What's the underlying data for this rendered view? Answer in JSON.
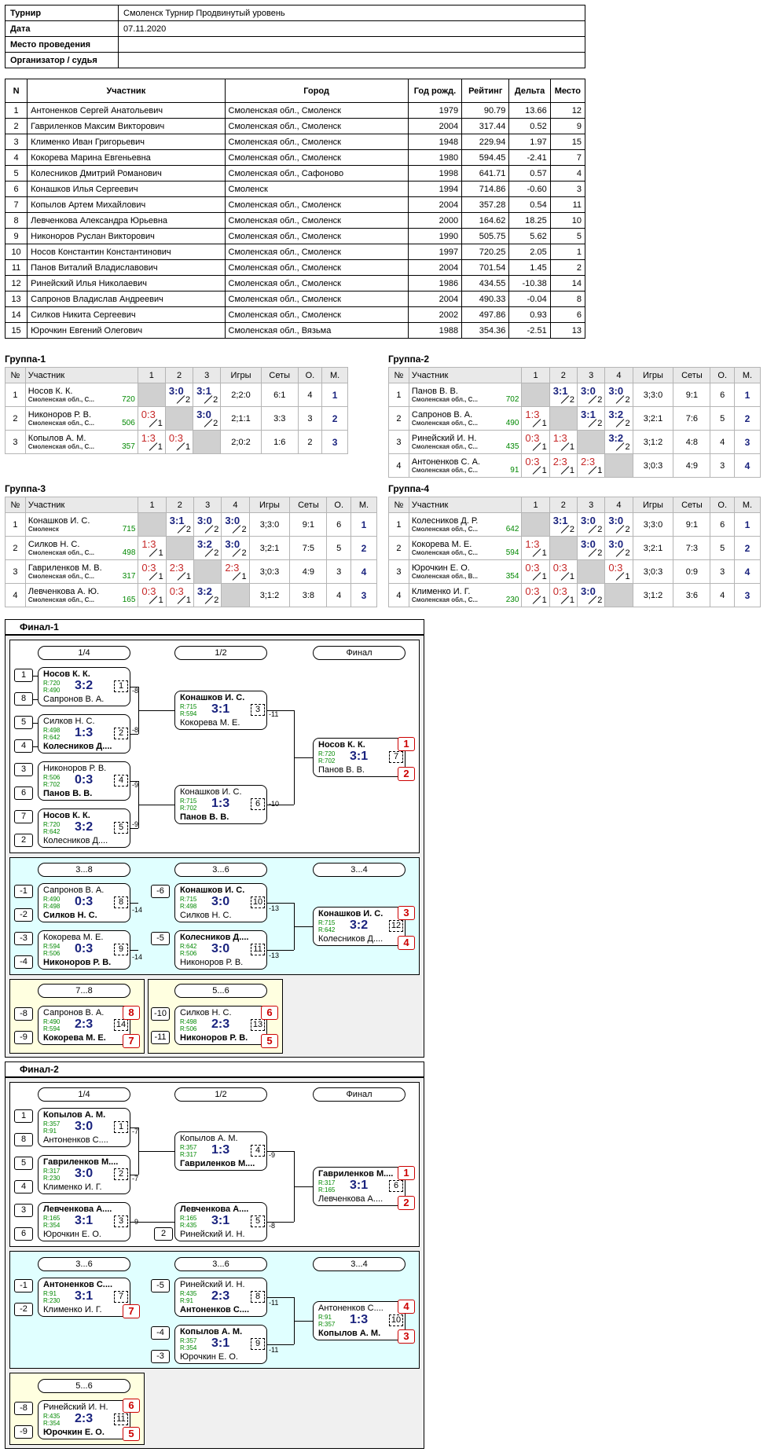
{
  "info": [
    {
      "k": "Турнир",
      "v": "Смоленск Турнир Продвинутый уровень"
    },
    {
      "k": "Дата",
      "v": "07.11.2020"
    },
    {
      "k": "Место проведения",
      "v": ""
    },
    {
      "k": "Организатор / судья",
      "v": ""
    }
  ],
  "participants": {
    "headers": [
      "N",
      "Участник",
      "Город",
      "Год рожд.",
      "Рейтинг",
      "Дельта",
      "Место"
    ],
    "rows": [
      [
        "1",
        "Антоненков Сергей Анатольевич",
        "Смоленская обл., Смоленск",
        "1979",
        "90.79",
        "13.66",
        "12"
      ],
      [
        "2",
        "Гавриленков Максим Викторович",
        "Смоленская обл., Смоленск",
        "2004",
        "317.44",
        "0.52",
        "9"
      ],
      [
        "3",
        "Клименко Иван Григорьевич",
        "Смоленская обл., Смоленск",
        "1948",
        "229.94",
        "1.97",
        "15"
      ],
      [
        "4",
        "Кокорева Марина Евгеньевна",
        "Смоленская обл., Смоленск",
        "1980",
        "594.45",
        "-2.41",
        "7"
      ],
      [
        "5",
        "Колесников Дмитрий Романович",
        "Смоленская обл., Сафоново",
        "1998",
        "641.71",
        "0.57",
        "4"
      ],
      [
        "6",
        "Конашков Илья Сергеевич",
        "Смоленск",
        "1994",
        "714.86",
        "-0.60",
        "3"
      ],
      [
        "7",
        "Копылов Артем Михайлович",
        "Смоленская обл., Смоленск",
        "2004",
        "357.28",
        "0.54",
        "11"
      ],
      [
        "8",
        "Левченкова Александра Юрьевна",
        "Смоленская обл., Смоленск",
        "2000",
        "164.62",
        "18.25",
        "10"
      ],
      [
        "9",
        "Никоноров Руслан Викторович",
        "Смоленская обл., Смоленск",
        "1990",
        "505.75",
        "5.62",
        "5"
      ],
      [
        "10",
        "Носов Константин Константинович",
        "Смоленская обл., Смоленск",
        "1997",
        "720.25",
        "2.05",
        "1"
      ],
      [
        "11",
        "Панов Виталий Владиславович",
        "Смоленская обл., Смоленск",
        "2004",
        "701.54",
        "1.45",
        "2"
      ],
      [
        "12",
        "Ринейский Илья Николаевич",
        "Смоленская обл., Смоленск",
        "1986",
        "434.55",
        "-10.38",
        "14"
      ],
      [
        "13",
        "Сапронов Владислав Андреевич",
        "Смоленская обл., Смоленск",
        "2004",
        "490.33",
        "-0.04",
        "8"
      ],
      [
        "14",
        "Силков Никита Сергеевич",
        "Смоленская обл., Смоленск",
        "2002",
        "497.86",
        "0.93",
        "6"
      ],
      [
        "15",
        "Юрочкин Евгений Олегович",
        "Смоленская обл., Вязьма",
        "1988",
        "354.36",
        "-2.51",
        "13"
      ]
    ]
  },
  "group_headers": {
    "n": "№",
    "name": "Участник",
    "games": "Игры",
    "sets": "Сеты",
    "pts": "О.",
    "place": "М."
  },
  "groups": [
    {
      "title": "Группа-1",
      "size": 3,
      "rows": [
        {
          "n": "1",
          "name": "Носов К. К.",
          "city": "Смоленская обл., С...",
          "rating": "720",
          "cells": [
            null,
            {
              "s": "3:0",
              "p": "2",
              "w": true
            },
            {
              "s": "3:1",
              "p": "2",
              "w": true
            }
          ],
          "games": "2;2:0",
          "sets": "6:1",
          "pts": "4",
          "place": "1"
        },
        {
          "n": "2",
          "name": "Никоноров Р. В.",
          "city": "Смоленская обл., С...",
          "rating": "506",
          "cells": [
            {
              "s": "0:3",
              "p": "1",
              "w": false
            },
            null,
            {
              "s": "3:0",
              "p": "2",
              "w": true
            }
          ],
          "games": "2;1:1",
          "sets": "3:3",
          "pts": "3",
          "place": "2"
        },
        {
          "n": "3",
          "name": "Копылов А. М.",
          "city": "Смоленская обл., С...",
          "rating": "357",
          "cells": [
            {
              "s": "1:3",
              "p": "1",
              "w": false
            },
            {
              "s": "0:3",
              "p": "1",
              "w": false
            },
            null
          ],
          "games": "2;0:2",
          "sets": "1:6",
          "pts": "2",
          "place": "3"
        }
      ]
    },
    {
      "title": "Группа-2",
      "size": 4,
      "rows": [
        {
          "n": "1",
          "name": "Панов В. В.",
          "city": "Смоленская обл., С...",
          "rating": "702",
          "cells": [
            null,
            {
              "s": "3:1",
              "p": "2",
              "w": true
            },
            {
              "s": "3:0",
              "p": "2",
              "w": true
            },
            {
              "s": "3:0",
              "p": "2",
              "w": true
            }
          ],
          "games": "3;3:0",
          "sets": "9:1",
          "pts": "6",
          "place": "1"
        },
        {
          "n": "2",
          "name": "Сапронов В. А.",
          "city": "Смоленская обл., С...",
          "rating": "490",
          "cells": [
            {
              "s": "1:3",
              "p": "1",
              "w": false
            },
            null,
            {
              "s": "3:1",
              "p": "2",
              "w": true
            },
            {
              "s": "3:2",
              "p": "2",
              "w": true
            }
          ],
          "games": "3;2:1",
          "sets": "7:6",
          "pts": "5",
          "place": "2"
        },
        {
          "n": "3",
          "name": "Ринейский И. Н.",
          "city": "Смоленская обл., С...",
          "rating": "435",
          "cells": [
            {
              "s": "0:3",
              "p": "1",
              "w": false
            },
            {
              "s": "1:3",
              "p": "1",
              "w": false
            },
            null,
            {
              "s": "3:2",
              "p": "2",
              "w": true
            }
          ],
          "games": "3;1:2",
          "sets": "4:8",
          "pts": "4",
          "place": "3"
        },
        {
          "n": "4",
          "name": "Антоненков С. А.",
          "city": "Смоленская обл., С...",
          "rating": "91",
          "cells": [
            {
              "s": "0:3",
              "p": "1",
              "w": false
            },
            {
              "s": "2:3",
              "p": "1",
              "w": false
            },
            {
              "s": "2:3",
              "p": "1",
              "w": false
            },
            null
          ],
          "games": "3;0:3",
          "sets": "4:9",
          "pts": "3",
          "place": "4"
        }
      ]
    },
    {
      "title": "Группа-3",
      "size": 4,
      "rows": [
        {
          "n": "1",
          "name": "Конашков И. С.",
          "city": "Смоленск",
          "rating": "715",
          "cells": [
            null,
            {
              "s": "3:1",
              "p": "2",
              "w": true
            },
            {
              "s": "3:0",
              "p": "2",
              "w": true
            },
            {
              "s": "3:0",
              "p": "2",
              "w": true
            }
          ],
          "games": "3;3:0",
          "sets": "9:1",
          "pts": "6",
          "place": "1"
        },
        {
          "n": "2",
          "name": "Силков Н. С.",
          "city": "Смоленская обл., С...",
          "rating": "498",
          "cells": [
            {
              "s": "1:3",
              "p": "1",
              "w": false
            },
            null,
            {
              "s": "3:2",
              "p": "2",
              "w": true
            },
            {
              "s": "3:0",
              "p": "2",
              "w": true
            }
          ],
          "games": "3;2:1",
          "sets": "7:5",
          "pts": "5",
          "place": "2"
        },
        {
          "n": "3",
          "name": "Гавриленков М. В.",
          "city": "Смоленская обл., С...",
          "rating": "317",
          "cells": [
            {
              "s": "0:3",
              "p": "1",
              "w": false
            },
            {
              "s": "2:3",
              "p": "1",
              "w": false
            },
            null,
            {
              "s": "2:3",
              "p": "1",
              "w": false
            }
          ],
          "games": "3;0:3",
          "sets": "4:9",
          "pts": "3",
          "place": "4"
        },
        {
          "n": "4",
          "name": "Левченкова А. Ю.",
          "city": "Смоленская обл., С...",
          "rating": "165",
          "cells": [
            {
              "s": "0:3",
              "p": "1",
              "w": false
            },
            {
              "s": "0:3",
              "p": "1",
              "w": false
            },
            {
              "s": "3:2",
              "p": "2",
              "w": true
            },
            null
          ],
          "games": "3;1:2",
          "sets": "3:8",
          "pts": "4",
          "place": "3"
        }
      ]
    },
    {
      "title": "Группа-4",
      "size": 4,
      "rows": [
        {
          "n": "1",
          "name": "Колесников Д. Р.",
          "city": "Смоленская обл., С...",
          "rating": "642",
          "cells": [
            null,
            {
              "s": "3:1",
              "p": "2",
              "w": true
            },
            {
              "s": "3:0",
              "p": "2",
              "w": true
            },
            {
              "s": "3:0",
              "p": "2",
              "w": true
            }
          ],
          "games": "3;3:0",
          "sets": "9:1",
          "pts": "6",
          "place": "1"
        },
        {
          "n": "2",
          "name": "Кокорева М. Е.",
          "city": "Смоленская обл., С...",
          "rating": "594",
          "cells": [
            {
              "s": "1:3",
              "p": "1",
              "w": false
            },
            null,
            {
              "s": "3:0",
              "p": "2",
              "w": true
            },
            {
              "s": "3:0",
              "p": "2",
              "w": true
            }
          ],
          "games": "3;2:1",
          "sets": "7:3",
          "pts": "5",
          "place": "2"
        },
        {
          "n": "3",
          "name": "Юрочкин Е. О.",
          "city": "Смоленская обл., В...",
          "rating": "354",
          "cells": [
            {
              "s": "0:3",
              "p": "1",
              "w": false
            },
            {
              "s": "0:3",
              "p": "1",
              "w": false
            },
            null,
            {
              "s": "0:3",
              "p": "1",
              "w": false
            }
          ],
          "games": "3;0:3",
          "sets": "0:9",
          "pts": "3",
          "place": "4"
        },
        {
          "n": "4",
          "name": "Клименко И. Г.",
          "city": "Смоленская обл., С...",
          "rating": "230",
          "cells": [
            {
              "s": "0:3",
              "p": "1",
              "w": false
            },
            {
              "s": "0:3",
              "p": "1",
              "w": false
            },
            {
              "s": "3:0",
              "p": "2",
              "w": true
            },
            null
          ],
          "games": "3;1:2",
          "sets": "3:6",
          "pts": "4",
          "place": "3"
        }
      ]
    }
  ],
  "final1": {
    "title": "Финал-1",
    "rounds": [
      "1/4",
      "1/2",
      "Финал",
      "3...8",
      "3...6",
      "3...4",
      "7...8",
      "5...6"
    ],
    "matches": [
      {
        "p1": "Носов К. К.",
        "p2": "Сапронов В. А.",
        "r1": "R:720",
        "r2": "R:490",
        "score": "3:2",
        "num": "1",
        "w": 1
      },
      {
        "p1": "Силков Н. С.",
        "p2": "Колесников Д....",
        "r1": "R:498",
        "r2": "R:642",
        "score": "1:3",
        "num": "2",
        "w": 2
      },
      {
        "p1": "Конашков И. С.",
        "p2": "Кокорева М. Е.",
        "r1": "R:715",
        "r2": "R:594",
        "score": "3:1",
        "num": "3",
        "w": 1
      },
      {
        "p1": "Никоноров Р. В.",
        "p2": "Панов В. В.",
        "r1": "R:506",
        "r2": "R:702",
        "score": "0:3",
        "num": "4",
        "w": 2
      },
      {
        "p1": "Носов К. К.",
        "p2": "Колесников Д....",
        "r1": "R:720",
        "r2": "R:642",
        "score": "3:2",
        "num": "5",
        "w": 1
      },
      {
        "p1": "Конашков И. С.",
        "p2": "Панов В. В.",
        "r1": "R:715",
        "r2": "R:702",
        "score": "1:3",
        "num": "6",
        "w": 2
      },
      {
        "p1": "Носов К. К.",
        "p2": "Панов В. В.",
        "r1": "R:720",
        "r2": "R:702",
        "score": "3:1",
        "num": "7",
        "w": 1
      },
      {
        "p1": "Сапронов В. А.",
        "p2": "Силков Н. С.",
        "r1": "R:490",
        "r2": "R:498",
        "score": "0:3",
        "num": "8",
        "w": 2
      },
      {
        "p1": "Кокорева М. Е.",
        "p2": "Никоноров Р. В.",
        "r1": "R:594",
        "r2": "R:506",
        "score": "0:3",
        "num": "9",
        "w": 2
      },
      {
        "p1": "Конашков И. С.",
        "p2": "Силков Н. С.",
        "r1": "R:715",
        "r2": "R:498",
        "score": "3:0",
        "num": "10",
        "w": 1
      },
      {
        "p1": "Колесников Д....",
        "p2": "Никоноров Р. В.",
        "r1": "R:642",
        "r2": "R:506",
        "score": "3:0",
        "num": "11",
        "w": 1
      },
      {
        "p1": "Конашков И. С.",
        "p2": "Колесников Д....",
        "r1": "R:715",
        "r2": "R:642",
        "score": "3:2",
        "num": "12",
        "w": 1
      },
      {
        "p1": "Сапронов В. А.",
        "p2": "Кокорева М. Е.",
        "r1": "R:490",
        "r2": "R:594",
        "score": "2:3",
        "num": "14",
        "w": 2
      },
      {
        "p1": "Силков Н. С.",
        "p2": "Никоноров Р. В.",
        "r1": "R:498",
        "r2": "R:506",
        "score": "2:3",
        "num": "13",
        "w": 2
      }
    ],
    "seeds": [
      "1",
      "8",
      "5",
      "4",
      "3",
      "6",
      "7",
      "2",
      "-1",
      "-2",
      "-3",
      "-4",
      "-6",
      "-5",
      "-8",
      "-9",
      "-10",
      "-11"
    ],
    "links": [
      "-8",
      "-8",
      "-9",
      "-9",
      "-11",
      "-10",
      "-14",
      "-14",
      "-13",
      "-13"
    ],
    "places": [
      "1",
      "2",
      "3",
      "4",
      "8",
      "7",
      "6",
      "5"
    ]
  },
  "final2": {
    "title": "Финал-2",
    "rounds": [
      "1/4",
      "1/2",
      "Финал",
      "3...6",
      "3...6",
      "3...4",
      "5...6"
    ],
    "matches": [
      {
        "p1": "Копылов А. М.",
        "p2": "Антоненков С....",
        "r1": "R:357",
        "r2": "R:91",
        "score": "3:0",
        "num": "1",
        "w": 1
      },
      {
        "p1": "Гавриленков М....",
        "p2": "Клименко И. Г.",
        "r1": "R:317",
        "r2": "R:230",
        "score": "3:0",
        "num": "2",
        "w": 1
      },
      {
        "p1": "Левченкова А....",
        "p2": "Юрочкин Е. О.",
        "r1": "R:165",
        "r2": "R:354",
        "score": "3:1",
        "num": "3",
        "w": 1
      },
      {
        "p1": "Копылов А. М.",
        "p2": "Гавриленков М....",
        "r1": "R:357",
        "r2": "R:317",
        "score": "1:3",
        "num": "4",
        "w": 2
      },
      {
        "p1": "Левченкова А....",
        "p2": "Ринейский И. Н.",
        "r1": "R:165",
        "r2": "R:435",
        "score": "3:1",
        "num": "5",
        "w": 1
      },
      {
        "p1": "Гавриленков М....",
        "p2": "Левченкова А....",
        "r1": "R:317",
        "r2": "R:165",
        "score": "3:1",
        "num": "6",
        "w": 1
      },
      {
        "p1": "Антоненков С....",
        "p2": "Клименко И. Г.",
        "r1": "R:91",
        "r2": "R:230",
        "score": "3:1",
        "num": "7",
        "w": 1
      },
      {
        "p1": "Ринейский И. Н.",
        "p2": "Антоненков С....",
        "r1": "R:435",
        "r2": "R:91",
        "score": "2:3",
        "num": "8",
        "w": 2
      },
      {
        "p1": "Копылов А. М.",
        "p2": "Юрочкин Е. О.",
        "r1": "R:357",
        "r2": "R:354",
        "score": "3:1",
        "num": "9",
        "w": 1
      },
      {
        "p1": "Антоненков С....",
        "p2": "Копылов А. М.",
        "r1": "R:91",
        "r2": "R:357",
        "score": "1:3",
        "num": "10",
        "w": 2
      },
      {
        "p1": "Ринейский И. Н.",
        "p2": "Юрочкин Е. О.",
        "r1": "R:435",
        "r2": "R:354",
        "score": "2:3",
        "num": "11",
        "w": 2
      }
    ],
    "seeds": [
      "1",
      "8",
      "5",
      "4",
      "3",
      "6",
      "2",
      "-1",
      "-2",
      "-5",
      "-4",
      "-3",
      "-8",
      "-9"
    ],
    "links": [
      "-7",
      "-7",
      "-9",
      "-9",
      "-8",
      "-11",
      "-11"
    ],
    "places": [
      "1",
      "2",
      "7",
      "4",
      "3",
      "6",
      "5"
    ]
  },
  "colors": {
    "win": "#1a237e",
    "loss": "#c62828",
    "rating": "#008800",
    "consol": "#e0ffff",
    "lower": "#ffffe0"
  }
}
